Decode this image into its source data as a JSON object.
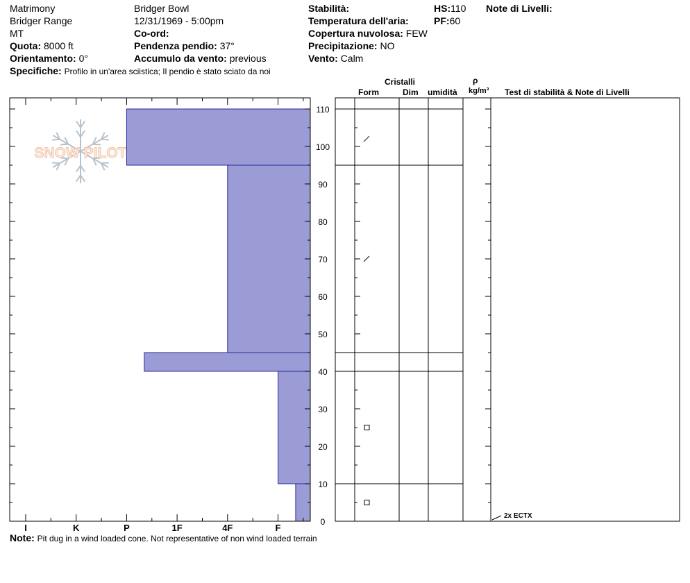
{
  "header": {
    "location": "Matrimony",
    "range": "Bridger Range",
    "state": "MT",
    "elevation_label": "Quota:",
    "elevation_value": "8000 ft",
    "aspect_label": "Orientamento:",
    "aspect_value": "0°",
    "specifics_label": "Specifiche:",
    "specifics_value": "Profilo in un'area sciistica; Il pendio è stato sciato da noi",
    "area": "Bridger Bowl",
    "datetime": "12/31/1969 - 5:00pm",
    "coord_label": "Co-ord:",
    "slope_label": "Pendenza pendio:",
    "slope_value": "37°",
    "wind_loading_label": "Accumulo da vento:",
    "wind_loading_value": "previous",
    "stability_label": "Stabilità:",
    "air_temp_label": "Temperatura dell'aria:",
    "cloud_label": "Copertura nuvolosa:",
    "cloud_value": "FEW",
    "precip_label": "Precipitazione:",
    "precip_value": "NO",
    "wind_label": "Vento:",
    "wind_value": "Calm",
    "hs_label": "HS:",
    "hs_value": "110",
    "pf_label": "PF:",
    "pf_value": "60",
    "layer_notes_label": "Note di Livelli:"
  },
  "columns": {
    "crystals": "Cristalli",
    "form": "Form",
    "size": "Dim",
    "moisture": "umidità",
    "rho": "ρ",
    "density_unit": "kg/m³",
    "tests": "Test di stabilità & Note di Livelli"
  },
  "note": {
    "label": "Note:",
    "text": "Pit dug in a wind loaded cone. Not representative of non wind loaded terrain"
  },
  "logo": {
    "text": "SNOW PILOT",
    "color": "#f2c4a8",
    "flake_color": "#b7c3cc"
  },
  "chart_data": {
    "type": "bar",
    "orientation": "horizontal-step",
    "hardness_scale": [
      "I",
      "K",
      "P",
      "1F",
      "4F",
      "F"
    ],
    "height_axis": {
      "min": 0,
      "max": 110,
      "major_step": 10,
      "minor_step": 5,
      "tick_labels": [
        "0",
        "10",
        "20",
        "30",
        "40",
        "50",
        "60",
        "70",
        "80",
        "90",
        "100",
        "110"
      ]
    },
    "bar_color": "#9b9bd6",
    "layers": [
      {
        "top": 110,
        "bottom": 95,
        "hardness": 2.0
      },
      {
        "top": 95,
        "bottom": 45,
        "hardness": 4.0
      },
      {
        "top": 45,
        "bottom": 40,
        "hardness": 2.35
      },
      {
        "top": 40,
        "bottom": 10,
        "hardness": 5.0
      },
      {
        "top": 10,
        "bottom": 0,
        "hardness": 5.35
      }
    ],
    "layer_boundaries": [
      110,
      95,
      45,
      40,
      10
    ],
    "grain_symbols": [
      {
        "height": 102,
        "symbol": "slash"
      },
      {
        "height": 70,
        "symbol": "slash"
      },
      {
        "height": 25,
        "symbol": "square"
      },
      {
        "height": 5,
        "symbol": "square"
      }
    ],
    "test_annotations": [
      {
        "height": 0,
        "label": "2x ECTX"
      }
    ]
  }
}
